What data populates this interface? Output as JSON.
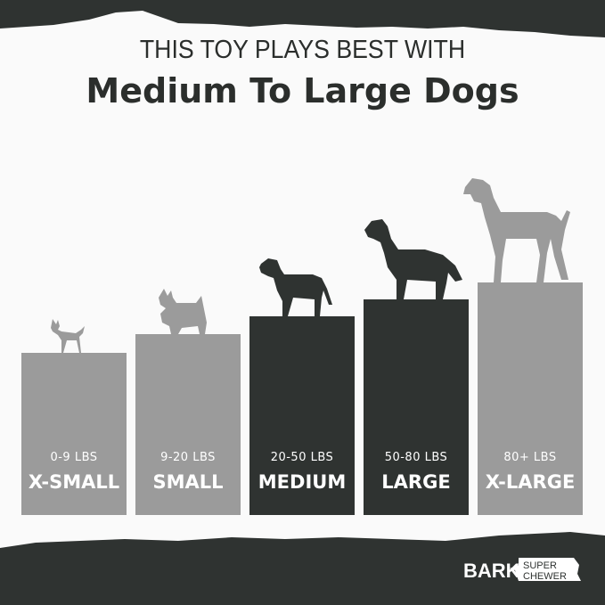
{
  "header": {
    "line1": "THIS TOY PLAYS BEST WITH",
    "line2": "Medium To Large Dogs"
  },
  "sizes": [
    {
      "weight": "0-9 LBS",
      "name": "X-SMALL",
      "color": "#9b9b9b",
      "recommended": false
    },
    {
      "weight": "9-20 LBS",
      "name": "SMALL",
      "color": "#9b9b9b",
      "recommended": false
    },
    {
      "weight": "20-50 LBS",
      "name": "MEDIUM",
      "color": "#2f3331",
      "recommended": true
    },
    {
      "weight": "50-80 LBS",
      "name": "LARGE",
      "color": "#2f3331",
      "recommended": true
    },
    {
      "weight": "80+ LBS",
      "name": "X-LARGE",
      "color": "#9b9b9b",
      "recommended": false
    }
  ],
  "logo": {
    "brand": "BARK",
    "tagline1": "SUPER",
    "tagline2": "CHEWER"
  },
  "colors": {
    "dark": "#2f3331",
    "gray": "#9b9b9b",
    "background": "#fafafa"
  }
}
